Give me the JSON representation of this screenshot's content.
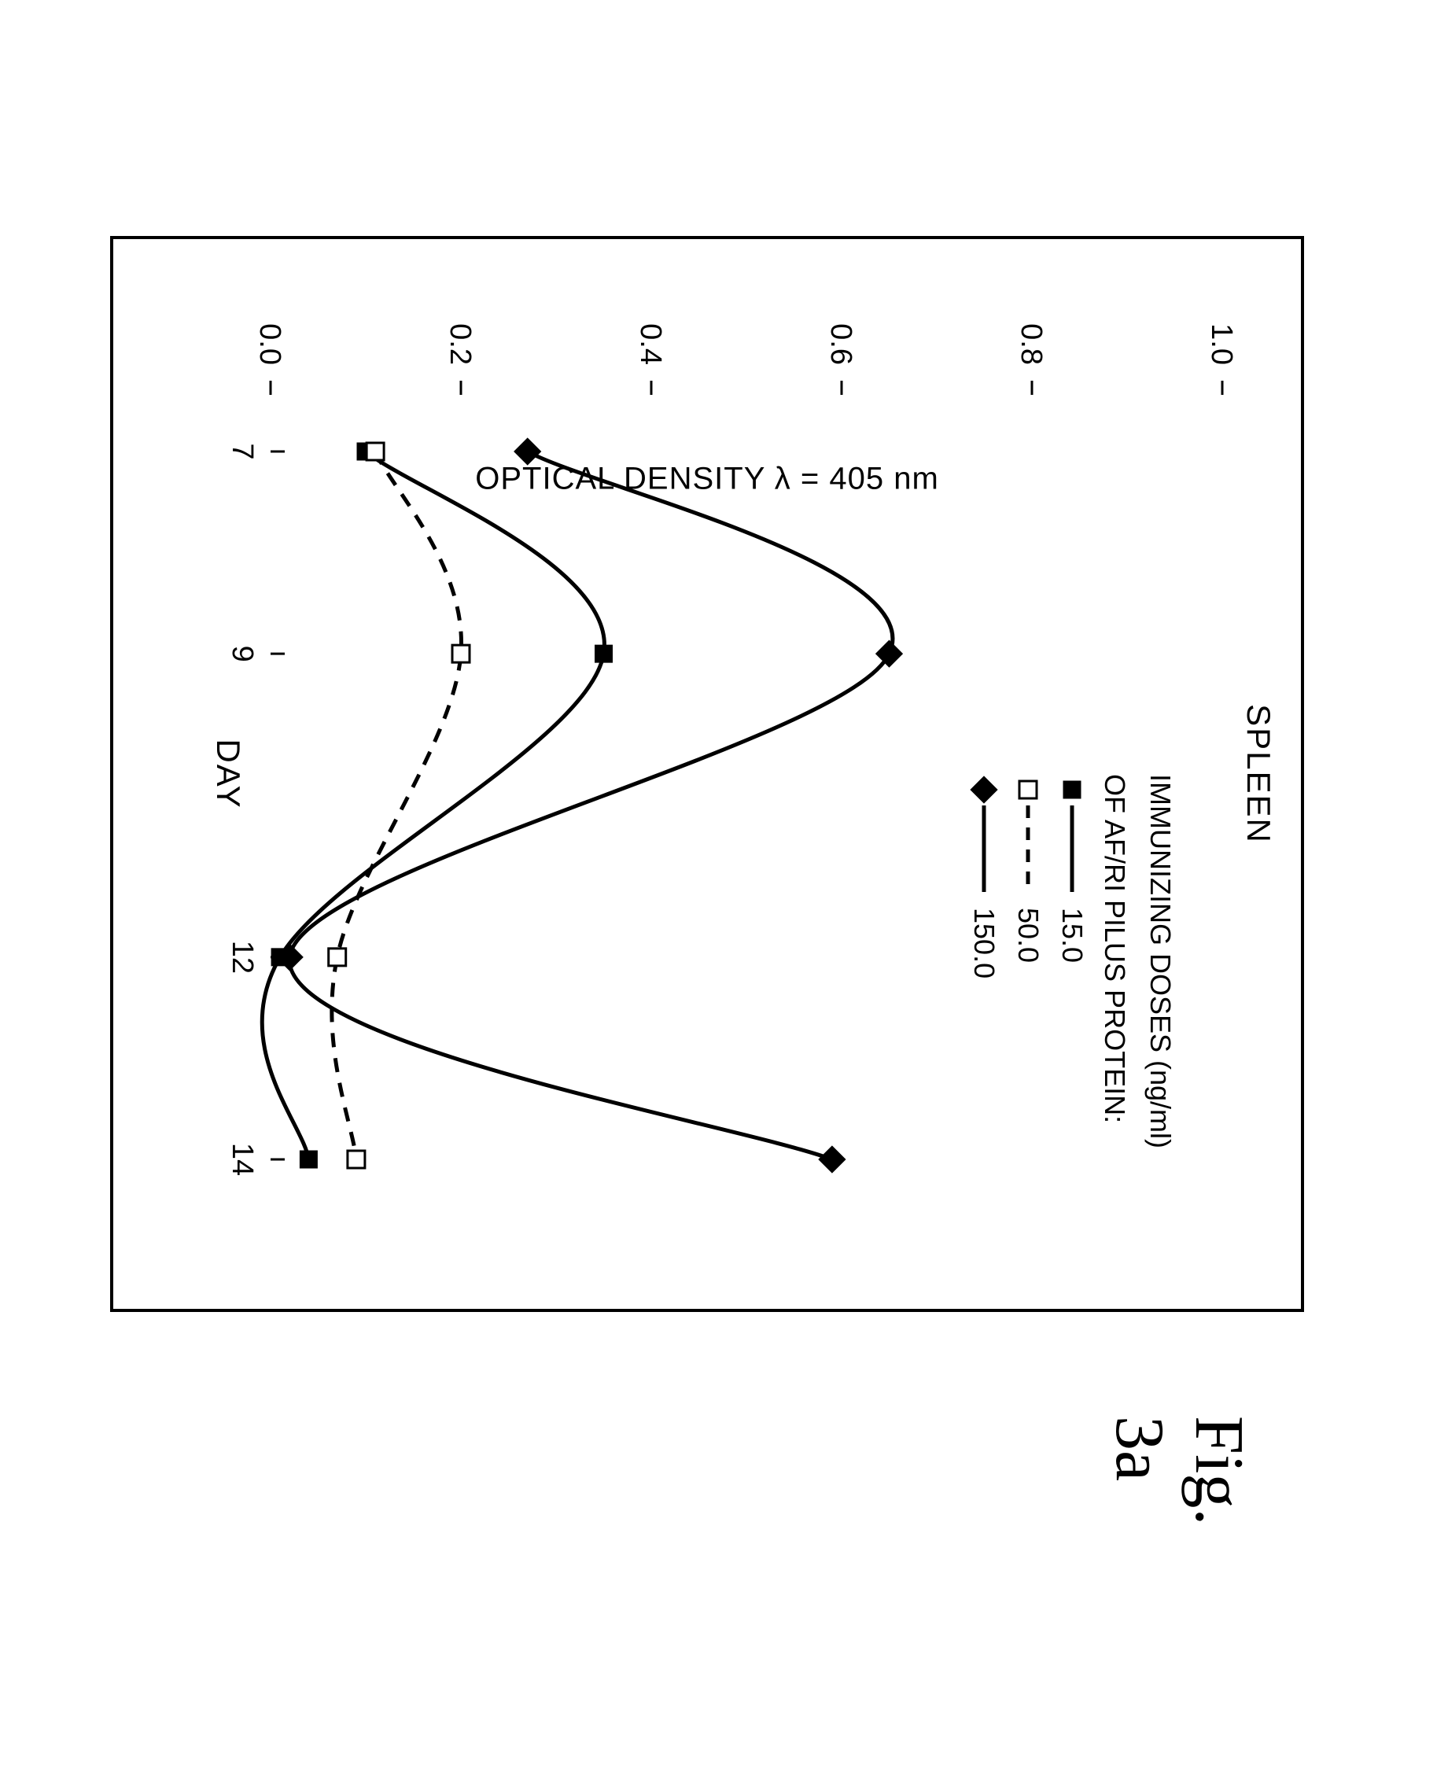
{
  "figure_caption": "Fig. 3a",
  "chart": {
    "type": "line",
    "title": "SPLEEN",
    "x_axis": {
      "label": "DAY",
      "ticks": [
        7,
        9,
        12,
        14
      ],
      "lim": [
        6.3,
        14.7
      ]
    },
    "y_axis": {
      "label": "OPTICAL DENSITY  λ = 405 nm",
      "ticks": [
        0,
        0.2,
        0.4,
        0.6,
        0.8,
        1.0
      ],
      "lim": [
        0,
        1.0
      ]
    },
    "legend": {
      "title_line1": "IMMUNIZING DOSES (ng/ml)",
      "title_line2": "OF AF/RI PILUS PROTEIN:"
    },
    "series": [
      {
        "label": "15.0",
        "marker": "filled-square",
        "dash": "solid",
        "color": "#000000",
        "line_width": 5,
        "x": [
          7,
          9,
          12,
          14
        ],
        "y": [
          0.1,
          0.35,
          0.01,
          0.04
        ]
      },
      {
        "label": "50.0",
        "marker": "open-square",
        "dash": "dashed",
        "color": "#000000",
        "line_width": 5,
        "x": [
          7,
          9,
          12,
          14
        ],
        "y": [
          0.11,
          0.2,
          0.07,
          0.09
        ]
      },
      {
        "label": "150.0",
        "marker": "filled-diamond",
        "dash": "solid",
        "color": "#000000",
        "line_width": 5,
        "x": [
          7,
          9,
          12,
          14
        ],
        "y": [
          0.27,
          0.65,
          0.02,
          0.59
        ]
      }
    ],
    "marker_size": 22,
    "background_color": "#ffffff",
    "border_color": "#000000",
    "tick_fontsize": 38,
    "label_fontsize": 42,
    "title_fontsize": 42
  }
}
